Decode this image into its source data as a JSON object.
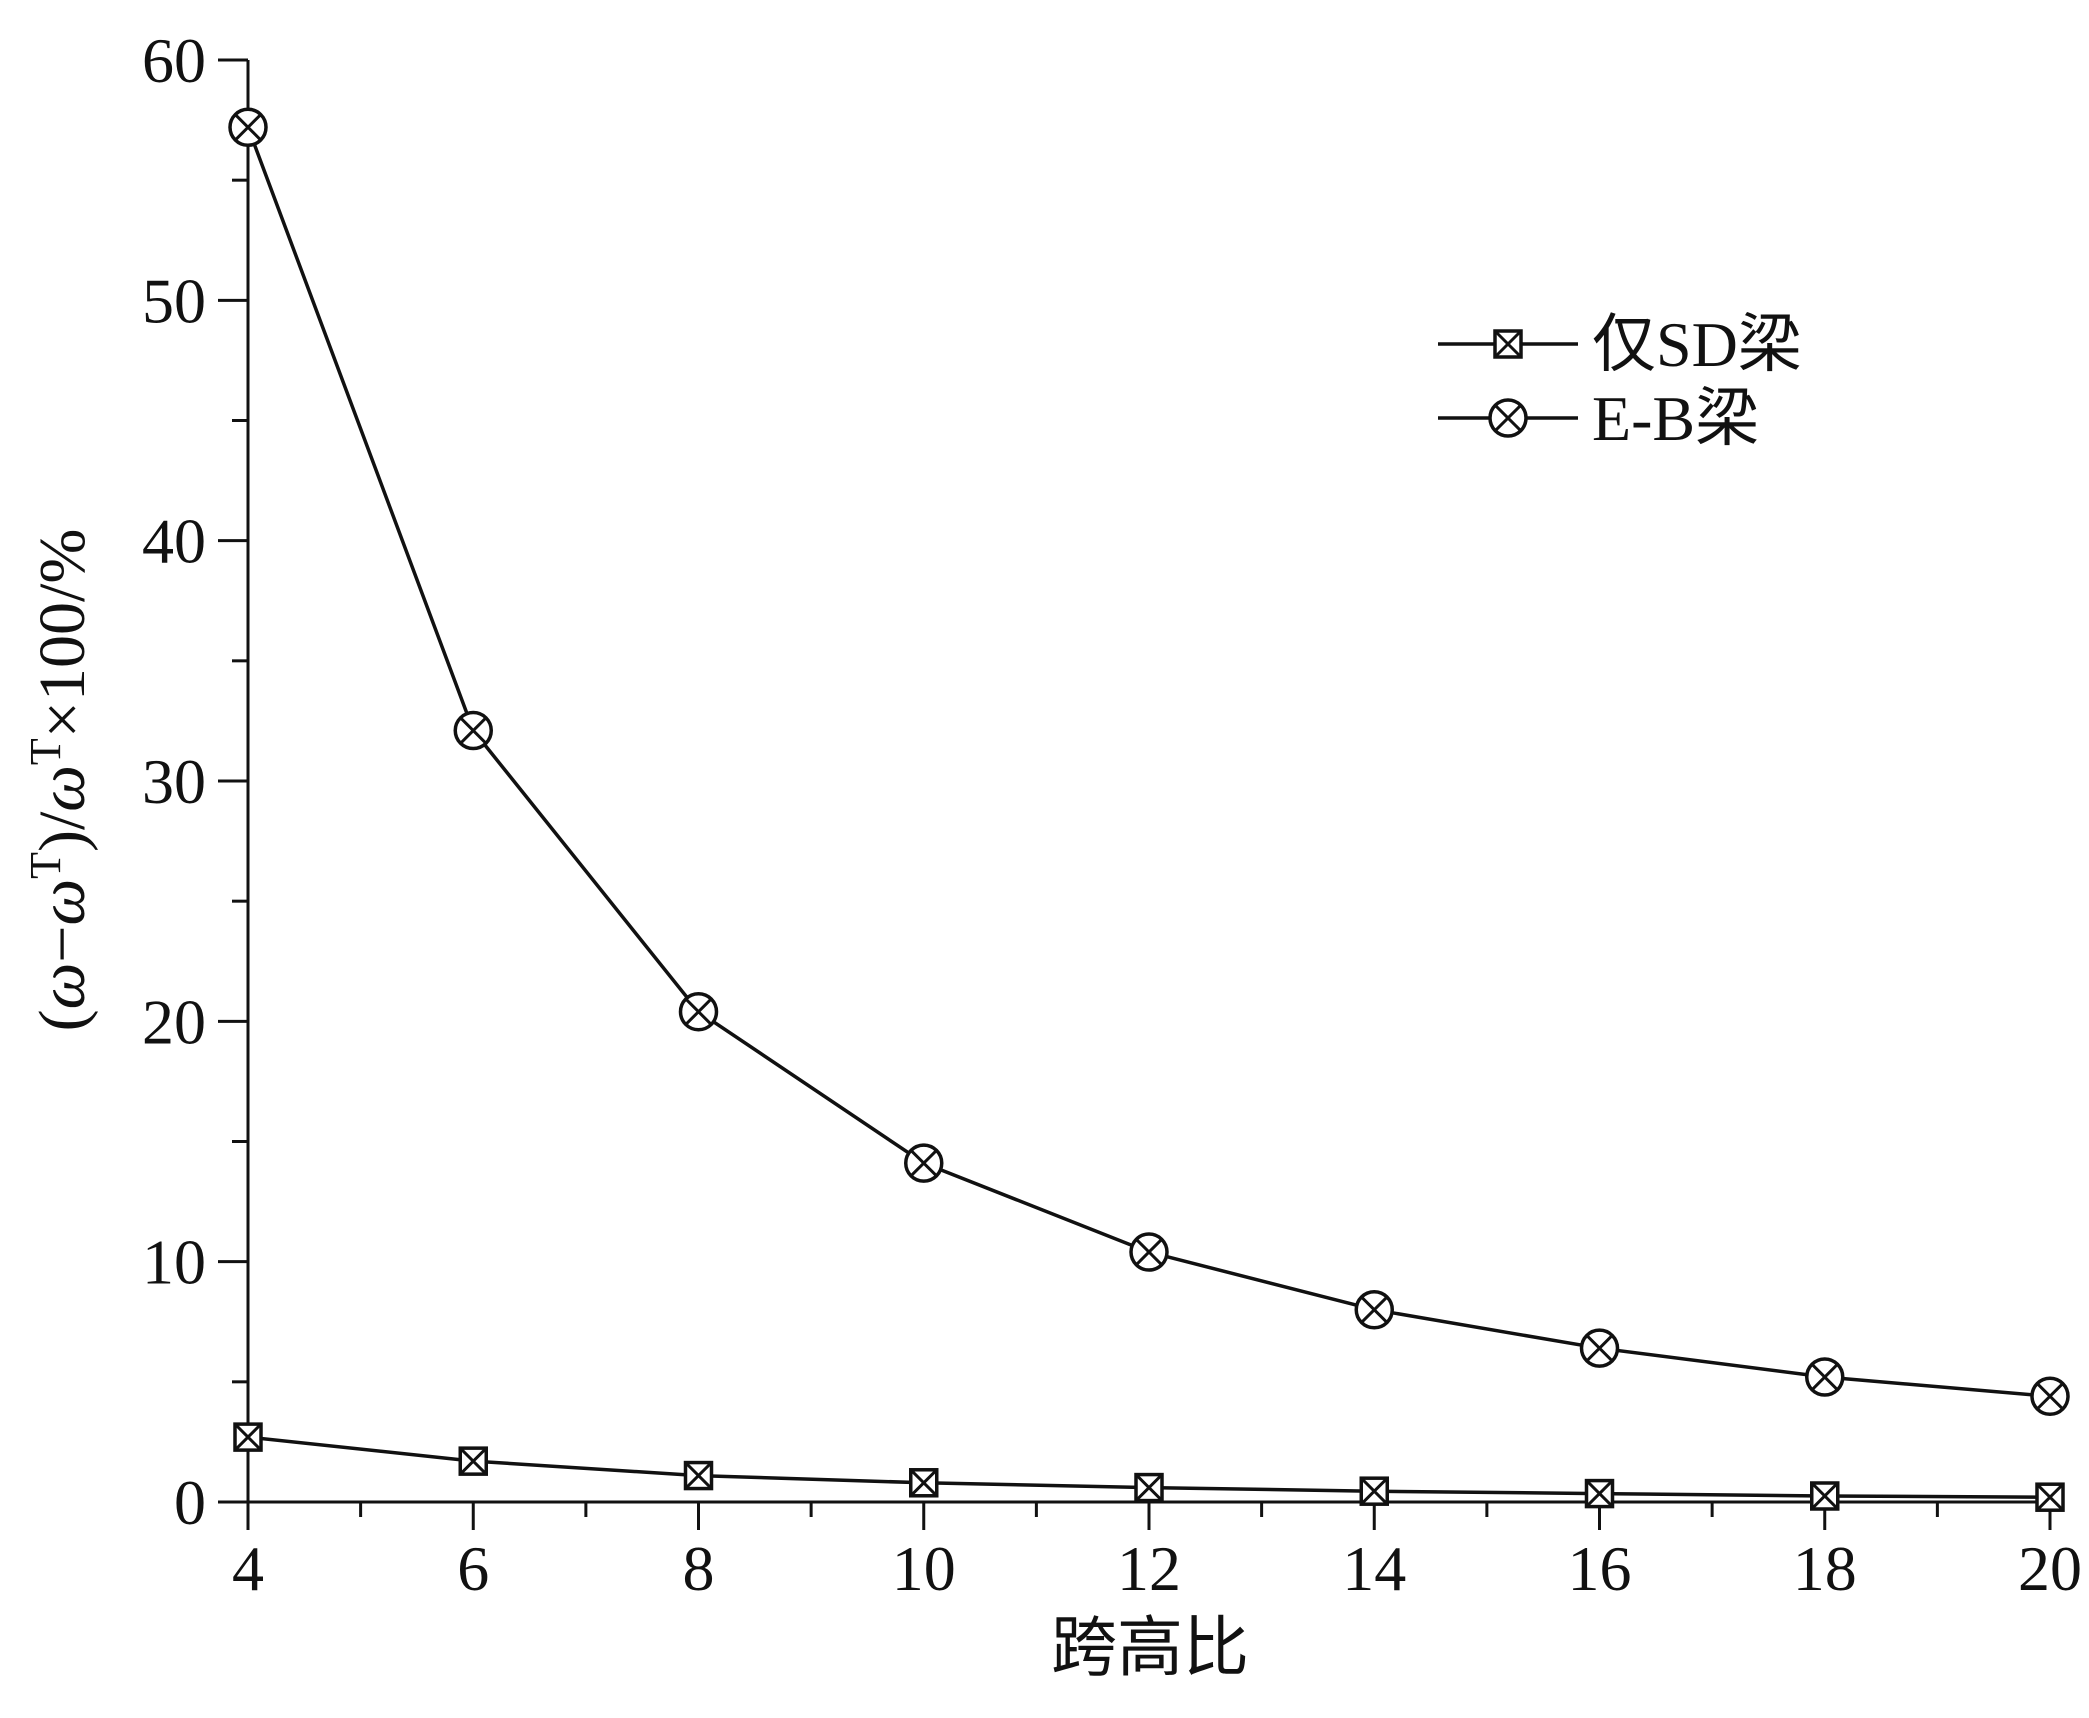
{
  "chart_data": {
    "type": "line",
    "x": [
      4,
      6,
      8,
      10,
      12,
      14,
      16,
      18,
      20
    ],
    "series": [
      {
        "name": "仅SD梁",
        "marker": "square-x",
        "values": [
          2.7,
          1.7,
          1.1,
          0.8,
          0.6,
          0.45,
          0.35,
          0.25,
          0.2
        ]
      },
      {
        "name": "E-B梁",
        "marker": "circle-x",
        "values": [
          57.2,
          32.1,
          20.4,
          14.1,
          10.4,
          8.0,
          6.4,
          5.2,
          4.4
        ]
      }
    ],
    "xlabel": "跨高比",
    "ylabel": "(ω−ωT)/ωT×100/%",
    "xlim": [
      4,
      20
    ],
    "ylim": [
      0,
      60
    ],
    "xticks": [
      "4",
      "6",
      "8",
      "10",
      "12",
      "14",
      "16",
      "18",
      "20"
    ],
    "yticks": [
      "0",
      "10",
      "20",
      "30",
      "40",
      "50",
      "60"
    ],
    "legend_position": "top-right",
    "grid": false,
    "line_color": "#111111"
  }
}
